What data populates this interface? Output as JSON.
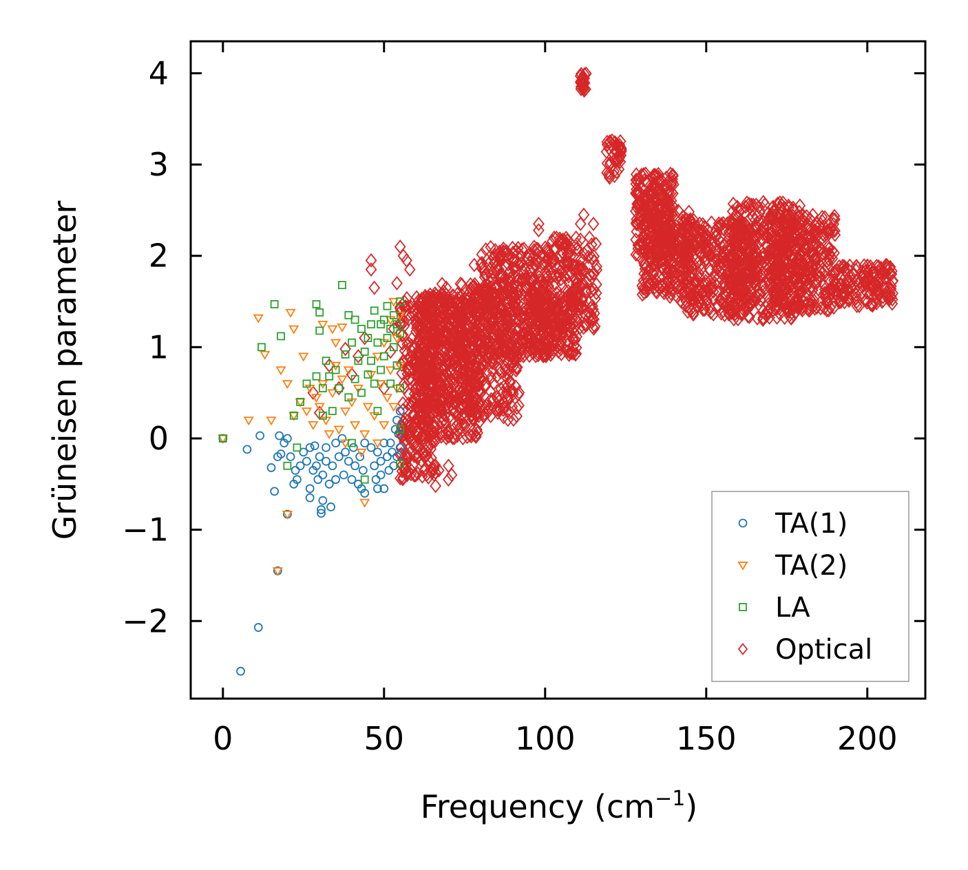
{
  "chart_data": {
    "type": "scatter",
    "xlabel": "Frequency (cm",
    "xlabel_sup": "−1",
    "xlabel_close": ")",
    "ylabel": "Grüneisen parameter",
    "xlim": [
      -10,
      218
    ],
    "ylim": [
      -2.85,
      4.35
    ],
    "xticks": [
      0,
      50,
      100,
      150,
      200
    ],
    "xtick_labels": [
      "0",
      "50",
      "100",
      "150",
      "200"
    ],
    "yticks": [
      -2,
      -1,
      0,
      1,
      2,
      3,
      4
    ],
    "ytick_labels": [
      "−2",
      "−1",
      "0",
      "1",
      "2",
      "3",
      "4"
    ],
    "legend_position": "lower-right",
    "series": [
      {
        "name": "TA(1)",
        "marker": "circle",
        "color": "#1f77b4",
        "points": [
          [
            0,
            0
          ],
          [
            5.5,
            -2.55
          ],
          [
            11,
            -2.07
          ],
          [
            11.5,
            0.03
          ],
          [
            7.5,
            -0.12
          ],
          [
            15,
            -0.32
          ],
          [
            16,
            -0.58
          ],
          [
            17,
            -0.2
          ],
          [
            17.5,
            0.03
          ],
          [
            18,
            -0.17
          ],
          [
            19,
            -0.05
          ],
          [
            20,
            0.0
          ],
          [
            20,
            -0.83
          ],
          [
            21,
            -0.2
          ],
          [
            22,
            -0.5
          ],
          [
            22.5,
            -0.35
          ],
          [
            23,
            -0.45
          ],
          [
            24,
            -0.3
          ],
          [
            25,
            -0.15
          ],
          [
            26,
            -0.25
          ],
          [
            27,
            -0.1
          ],
          [
            27,
            -0.55
          ],
          [
            27,
            -0.65
          ],
          [
            28,
            -0.35
          ],
          [
            28.5,
            -0.08
          ],
          [
            29,
            -0.3
          ],
          [
            29.5,
            -0.45
          ],
          [
            30,
            -0.2
          ],
          [
            30.5,
            -0.78
          ],
          [
            30.5,
            -0.82
          ],
          [
            31,
            -0.4
          ],
          [
            31,
            -0.68
          ],
          [
            32,
            -0.1
          ],
          [
            32,
            -0.25
          ],
          [
            33,
            -0.5
          ],
          [
            33.5,
            -0.75
          ],
          [
            34,
            -0.3
          ],
          [
            35,
            -0.05
          ],
          [
            35,
            -0.45
          ],
          [
            36,
            -0.2
          ],
          [
            37,
            0.0
          ],
          [
            37.5,
            -0.4
          ],
          [
            38,
            -0.15
          ],
          [
            39,
            -0.25
          ],
          [
            40,
            -0.45
          ],
          [
            40.5,
            -0.1
          ],
          [
            41,
            -0.3
          ],
          [
            42,
            -0.5
          ],
          [
            42.5,
            -0.2
          ],
          [
            43,
            -0.55
          ],
          [
            43.5,
            -0.35
          ],
          [
            44,
            -0.6
          ],
          [
            44,
            -0.05
          ],
          [
            46,
            -0.1
          ],
          [
            47,
            -0.3
          ],
          [
            47.5,
            -0.45
          ],
          [
            48,
            -0.15
          ],
          [
            48,
            -0.55
          ],
          [
            49,
            -0.25
          ],
          [
            49,
            -0.4
          ],
          [
            50,
            -0.05
          ],
          [
            50,
            -0.55
          ],
          [
            51,
            -0.2
          ],
          [
            51.5,
            -0.35
          ],
          [
            52,
            -0.05
          ],
          [
            52.5,
            -0.15
          ],
          [
            53,
            -0.3
          ],
          [
            53.5,
            0.1
          ],
          [
            54,
            -0.2
          ],
          [
            54,
            0.2
          ],
          [
            54.5,
            0.05
          ],
          [
            55,
            0.3
          ],
          [
            55,
            -0.1
          ],
          [
            17,
            -1.45
          ]
        ]
      },
      {
        "name": "TA(2)",
        "marker": "triangle-down",
        "color": "#ff7f0e",
        "points": [
          [
            0,
            0
          ],
          [
            8,
            0.2
          ],
          [
            11,
            1.32
          ],
          [
            13,
            0.92
          ],
          [
            15,
            0.2
          ],
          [
            17,
            -1.45
          ],
          [
            18,
            0.75
          ],
          [
            20,
            0.6
          ],
          [
            20,
            -0.83
          ],
          [
            21,
            1.38
          ],
          [
            22,
            1.2
          ],
          [
            22,
            0.25
          ],
          [
            24,
            0.4
          ],
          [
            25,
            0.9
          ],
          [
            26,
            0.3
          ],
          [
            27,
            0.55
          ],
          [
            28,
            0.15
          ],
          [
            29,
            0.45
          ],
          [
            30,
            0.35
          ],
          [
            31,
            0.6
          ],
          [
            32,
            0.2
          ],
          [
            33,
            0.05
          ],
          [
            34,
            0.5
          ],
          [
            35,
            0.8
          ],
          [
            35,
            1.05
          ],
          [
            36,
            0.1
          ],
          [
            37,
            0.65
          ],
          [
            38,
            0.3
          ],
          [
            38,
            -0.05
          ],
          [
            39,
            0.75
          ],
          [
            40,
            0.4
          ],
          [
            41,
            0.15
          ],
          [
            42,
            0.55
          ],
          [
            43,
            -0.15
          ],
          [
            44,
            0.05
          ],
          [
            44,
            -0.7
          ],
          [
            45,
            0.35
          ],
          [
            46,
            0.7
          ],
          [
            47,
            0.25
          ],
          [
            48,
            0.9
          ],
          [
            48,
            -0.05
          ],
          [
            49,
            0.6
          ],
          [
            50,
            1.05
          ],
          [
            50,
            0.15
          ],
          [
            51,
            0.45
          ],
          [
            52,
            1.3
          ],
          [
            52,
            0.75
          ],
          [
            53,
            0.35
          ],
          [
            53,
            1.5
          ],
          [
            54,
            1.1
          ],
          [
            54,
            0.55
          ],
          [
            55,
            0.8
          ],
          [
            55,
            1.35
          ],
          [
            34,
            1.2
          ],
          [
            37,
            1.22
          ],
          [
            31,
            1.25
          ]
        ]
      },
      {
        "name": "LA",
        "marker": "square",
        "color": "#2ca02c",
        "points": [
          [
            0,
            0
          ],
          [
            12,
            1.0
          ],
          [
            16,
            1.47
          ],
          [
            18,
            1.12
          ],
          [
            20,
            -0.3
          ],
          [
            22,
            0.25
          ],
          [
            23,
            -0.1
          ],
          [
            24,
            0.4
          ],
          [
            26,
            0.6
          ],
          [
            29,
            0.68
          ],
          [
            29,
            1.47
          ],
          [
            30,
            1.38
          ],
          [
            30,
            1.18
          ],
          [
            31,
            0.55
          ],
          [
            31,
            0.25
          ],
          [
            32,
            0.85
          ],
          [
            33,
            0.68
          ],
          [
            34,
            0.3
          ],
          [
            35,
            0.75
          ],
          [
            36,
            0.55
          ],
          [
            37,
            1.68
          ],
          [
            38,
            0.92
          ],
          [
            39,
            0.45
          ],
          [
            40,
            1.05
          ],
          [
            40,
            -0.05
          ],
          [
            41,
            0.65
          ],
          [
            42,
            0.85
          ],
          [
            43,
            1.2
          ],
          [
            43,
            0.5
          ],
          [
            44,
            0.95
          ],
          [
            44,
            -0.45
          ],
          [
            45,
            0.7
          ],
          [
            45,
            1.1
          ],
          [
            46,
            0.85
          ],
          [
            46,
            1.25
          ],
          [
            47,
            0.6
          ],
          [
            47,
            1.4
          ],
          [
            48,
            1.05
          ],
          [
            48,
            0.3
          ],
          [
            49,
            0.75
          ],
          [
            49,
            1.25
          ],
          [
            50,
            1.3
          ],
          [
            50,
            0.9
          ],
          [
            51,
            1.45
          ],
          [
            51,
            1.1
          ],
          [
            52,
            1.2
          ],
          [
            52,
            0.6
          ],
          [
            53,
            1.35
          ],
          [
            53,
            1.0
          ],
          [
            54,
            1.25
          ],
          [
            54,
            0.8
          ],
          [
            55,
            1.5
          ],
          [
            55,
            1.15
          ],
          [
            55,
            0.55
          ],
          [
            55,
            0.1
          ],
          [
            55,
            -0.28
          ],
          [
            41,
            1.3
          ],
          [
            39,
            1.35
          ]
        ]
      },
      {
        "name": "Optical",
        "marker": "diamond",
        "color": "#d62728",
        "points": [
          [
            28,
            0.5
          ],
          [
            30,
            0.28
          ],
          [
            33,
            0.8
          ],
          [
            36,
            0.55
          ],
          [
            38,
            0.98
          ],
          [
            40,
            0.7
          ],
          [
            42,
            0.9
          ],
          [
            44,
            1.1
          ],
          [
            46,
            1.95
          ],
          [
            46,
            1.85
          ],
          [
            47,
            1.65
          ],
          [
            50,
            0.55
          ],
          [
            52,
            0.95
          ],
          [
            53,
            1.2
          ],
          [
            54,
            1.7
          ],
          [
            55,
            2.1
          ],
          [
            56,
            2.0
          ],
          [
            57,
            1.95
          ],
          [
            58,
            1.85
          ],
          [
            66,
            -0.52
          ],
          [
            67,
            -0.35
          ],
          [
            70,
            -0.3
          ],
          [
            70,
            -0.45
          ],
          [
            71,
            -0.4
          ],
          [
            78,
            1.9
          ],
          [
            98,
            2.35
          ],
          [
            98,
            2.28
          ],
          [
            88,
            2.05
          ],
          [
            90,
            1.95
          ],
          [
            112,
            2.45
          ],
          [
            111,
            2.35
          ],
          [
            115,
            2.35
          ]
        ],
        "clusters": [
          {
            "x": [
              55,
              66
            ],
            "y": [
              -0.45,
              1.6
            ],
            "n": 320
          },
          {
            "x": [
              60,
              80
            ],
            "y": [
              0.0,
              1.6
            ],
            "n": 520
          },
          {
            "x": [
              66,
              92
            ],
            "y": [
              0.2,
              1.7
            ],
            "n": 420
          },
          {
            "x": [
              80,
              102
            ],
            "y": [
              0.9,
              2.1
            ],
            "n": 420
          },
          {
            "x": [
              95,
              110
            ],
            "y": [
              0.9,
              1.6
            ],
            "n": 180
          },
          {
            "x": [
              102,
              116
            ],
            "y": [
              1.2,
              2.2
            ],
            "n": 180
          },
          {
            "x": [
              111,
              113
            ],
            "y": [
              3.8,
              4.0
            ],
            "n": 25
          },
          {
            "x": [
              119,
              124
            ],
            "y": [
              2.85,
              3.28
            ],
            "n": 40
          },
          {
            "x": [
              128,
              140
            ],
            "y": [
              2.0,
              2.9
            ],
            "n": 230
          },
          {
            "x": [
              130,
              146
            ],
            "y": [
              1.55,
              2.5
            ],
            "n": 240
          },
          {
            "x": [
              142,
              165
            ],
            "y": [
              1.35,
              2.4
            ],
            "n": 380
          },
          {
            "x": [
              158,
              180
            ],
            "y": [
              1.3,
              2.6
            ],
            "n": 380
          },
          {
            "x": [
              170,
              190
            ],
            "y": [
              1.4,
              2.45
            ],
            "n": 360
          },
          {
            "x": [
              190,
              208
            ],
            "y": [
              1.45,
              1.9
            ],
            "n": 160
          }
        ]
      }
    ]
  }
}
